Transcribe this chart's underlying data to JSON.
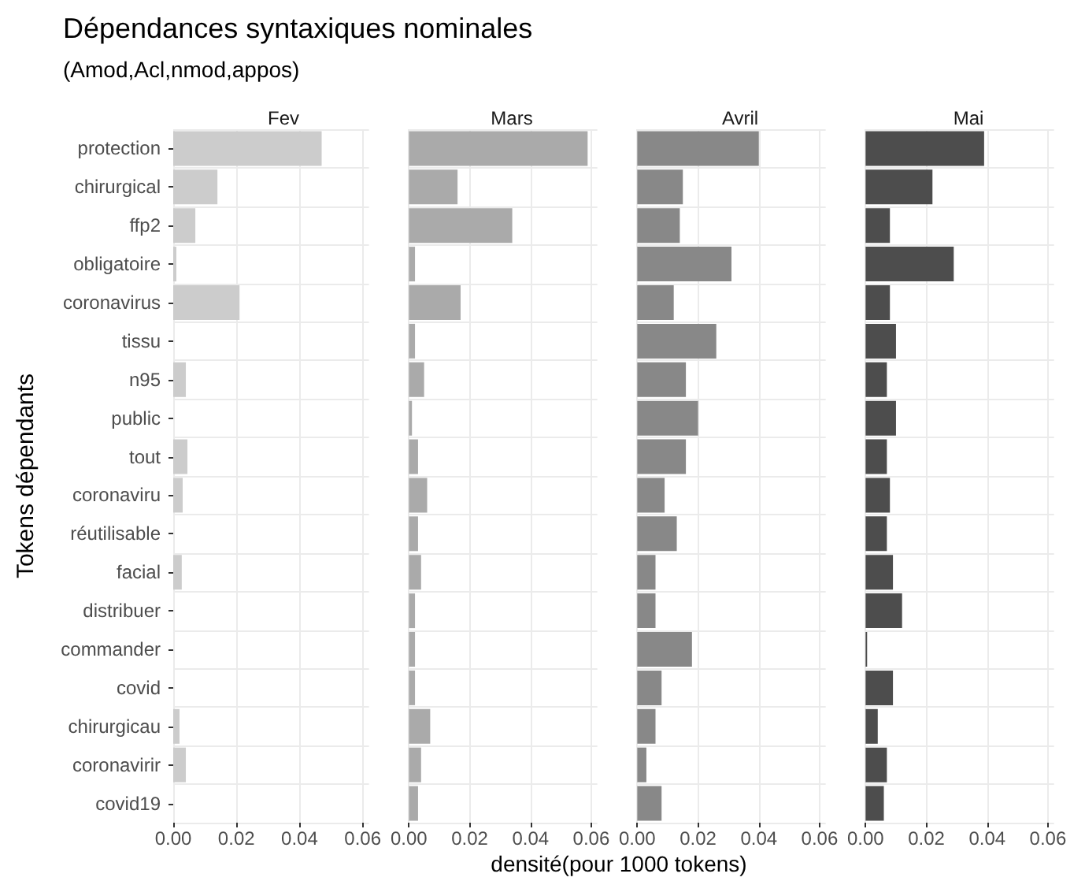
{
  "chart_data": [
    {
      "type": "bar",
      "orientation": "horizontal",
      "title": "Dépendances syntaxiques nominales",
      "subtitle": "(Amod,Acl,nmod,appos)",
      "xlabel": "densité(pour 1000 tokens)",
      "ylabel": "Tokens dépendants",
      "categories": [
        "protection",
        "chirurgical",
        "ffp2",
        "obligatoire",
        "coronavirus",
        "tissu",
        "n95",
        "public",
        "tout",
        "coronaviru",
        "réutilisable",
        "facial",
        "distribuer",
        "commander",
        "covid",
        "chirurgicau",
        "coronavirir",
        "covid19"
      ],
      "series": [
        {
          "name": "Fev",
          "color": "#cccccc",
          "values": [
            0.047,
            0.014,
            0.007,
            0.001,
            0.021,
            0,
            0.004,
            0,
            0.0045,
            0.003,
            null,
            0.0027,
            0,
            null,
            0,
            0.002,
            0.004,
            null
          ]
        }
      ],
      "xlim": [
        0,
        0.062
      ],
      "xticks": [
        {
          "value": 0,
          "label": "0.00"
        },
        {
          "value": 0.02,
          "label": "0.02"
        },
        {
          "value": 0.04,
          "label": "0.04"
        },
        {
          "value": 0.06,
          "label": "0.06"
        }
      ],
      "grid": true
    },
    {
      "type": "bar",
      "orientation": "horizontal",
      "series": [
        {
          "name": "Mars",
          "color": "#aaaaaa",
          "values": [
            0.0588,
            0.016,
            0.034,
            0.002,
            0.017,
            0.002,
            0.005,
            0.001,
            0.003,
            0.006,
            0.003,
            0.004,
            0.002,
            0.002,
            0.002,
            0.007,
            0.004,
            0.003
          ]
        }
      ],
      "xlim": [
        0,
        0.062
      ],
      "xticks": [
        {
          "value": 0,
          "label": "0.00"
        },
        {
          "value": 0.02,
          "label": "0.02"
        },
        {
          "value": 0.04,
          "label": "0.04"
        },
        {
          "value": 0.06,
          "label": "0.06"
        }
      ],
      "grid": true,
      "tick_labels": "x"
    },
    {
      "type": "bar",
      "orientation": "horizontal",
      "series": [
        {
          "name": "Avril",
          "color": "#888888",
          "values": [
            0.04,
            0.015,
            0.014,
            0.031,
            0.012,
            0.026,
            0.016,
            0.02,
            0.016,
            0.009,
            0.013,
            0.006,
            0.006,
            0.018,
            0.008,
            0.006,
            0.003,
            0.008
          ]
        }
      ],
      "xlim": [
        0,
        0.062
      ],
      "xticks": [
        {
          "value": 0,
          "label": "0.00"
        },
        {
          "value": 0.02,
          "label": "0.02"
        },
        {
          "value": 0.04,
          "label": "0.04"
        },
        {
          "value": 0.06,
          "label": "0.06"
        }
      ],
      "grid": true,
      "tick_labels": "x"
    },
    {
      "type": "bar",
      "orientation": "horizontal",
      "series": [
        {
          "name": "Mai",
          "color": "#4d4d4d",
          "values": [
            0.039,
            0.022,
            0.008,
            0.029,
            0.008,
            0.01,
            0.007,
            0.01,
            0.007,
            0.008,
            0.007,
            0.009,
            0.012,
            0.0005,
            0.009,
            0.004,
            0.007,
            0.006
          ]
        }
      ],
      "xlim": [
        0,
        0.062
      ],
      "xticks": [
        {
          "value": 0,
          "label": "0.00"
        },
        {
          "value": 0.02,
          "label": "0.02"
        },
        {
          "value": 0.04,
          "label": "0.04"
        },
        {
          "value": 0.06,
          "label": "0.06"
        }
      ],
      "grid": true,
      "tick_labels": "x"
    }
  ]
}
